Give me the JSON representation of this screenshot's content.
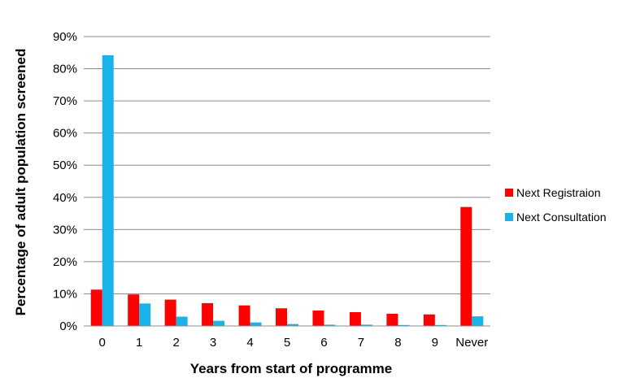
{
  "chart_data": {
    "type": "bar",
    "categories": [
      "0",
      "1",
      "2",
      "3",
      "4",
      "5",
      "6",
      "7",
      "8",
      "9",
      "Never"
    ],
    "series": [
      {
        "name": "Next Registraion",
        "color": "#ff0000",
        "values": [
          11.3,
          9.8,
          8.2,
          7.1,
          6.4,
          5.5,
          4.8,
          4.3,
          3.8,
          3.6,
          37.0
        ]
      },
      {
        "name": "Next Consultation",
        "color": "#1ab2e8",
        "values": [
          84.2,
          7.0,
          2.9,
          1.6,
          1.1,
          0.6,
          0.4,
          0.4,
          0.3,
          0.3,
          3.0
        ]
      }
    ],
    "xlabel": "Years from start of programme",
    "ylabel": "Percentage of adult population screened",
    "ylim": [
      0,
      90
    ],
    "yticks": [
      "0%",
      "10%",
      "20%",
      "30%",
      "40%",
      "50%",
      "60%",
      "70%",
      "80%",
      "90%"
    ],
    "grid": true,
    "legend_position": "right"
  }
}
